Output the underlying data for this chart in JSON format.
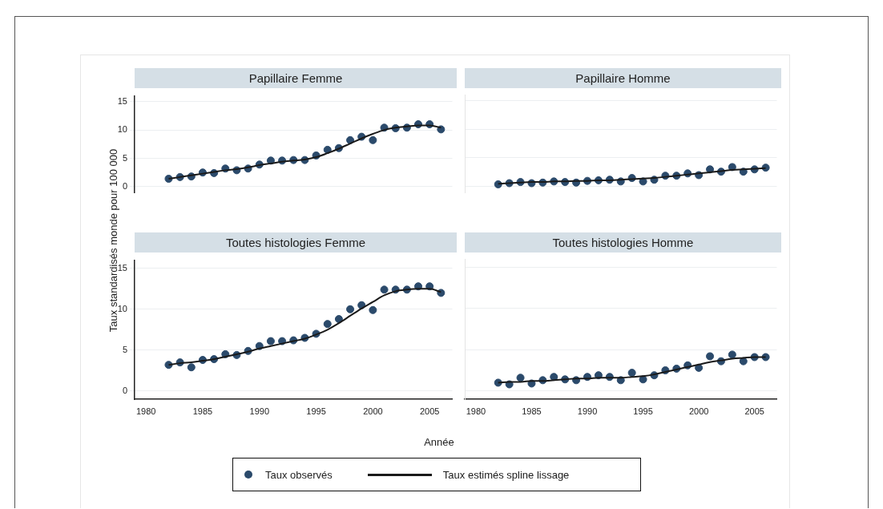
{
  "chart_data": [
    {
      "type": "scatter",
      "title": "Papillaire Femme",
      "ylabel": "Taux standardisés monde pour 100 000",
      "xlim": [
        1979,
        2007
      ],
      "xticks": [
        1980,
        1985,
        1990,
        1995,
        2000,
        2005
      ],
      "ylim": [
        -1,
        16
      ],
      "yticks": [
        0,
        5,
        10,
        15
      ],
      "grid": "y",
      "tick_labels": "y",
      "legend": "bottom",
      "x": [
        1982,
        1983,
        1984,
        1985,
        1986,
        1987,
        1988,
        1989,
        1990,
        1991,
        1992,
        1993,
        1994,
        1995,
        1996,
        1997,
        1998,
        1999,
        2000,
        2001,
        2002,
        2003,
        2004,
        2005,
        2006
      ],
      "series": [
        {
          "name": "Taux observés",
          "marker": "circle",
          "color": "#2b4a6b",
          "values": [
            1.4,
            1.7,
            1.8,
            2.5,
            2.4,
            3.2,
            2.9,
            3.2,
            3.9,
            4.6,
            4.6,
            4.7,
            4.7,
            5.5,
            6.5,
            6.8,
            8.2,
            8.8,
            8.2,
            10.4,
            10.3,
            10.4,
            11.0,
            11.0,
            10.1
          ]
        },
        {
          "name": "Taux estimés spline lissage",
          "type": "line",
          "marker": "none",
          "color": "#1a1a1a",
          "values": [
            1.4,
            1.7,
            2.0,
            2.3,
            2.6,
            2.9,
            3.1,
            3.4,
            3.8,
            4.1,
            4.4,
            4.6,
            4.8,
            5.2,
            5.9,
            6.7,
            7.6,
            8.5,
            9.3,
            10.0,
            10.4,
            10.6,
            10.8,
            10.8,
            10.4
          ]
        }
      ]
    },
    {
      "type": "scatter",
      "title": "Papillaire Homme",
      "xlim": [
        1979,
        2007
      ],
      "xticks": [
        1980,
        1985,
        1990,
        1995,
        2000,
        2005
      ],
      "ylim": [
        -1,
        16
      ],
      "yticks": [
        0,
        5,
        10,
        15
      ],
      "grid": "y",
      "tick_labels": false,
      "x": [
        1982,
        1983,
        1984,
        1985,
        1986,
        1987,
        1988,
        1989,
        1990,
        1991,
        1992,
        1993,
        1994,
        1995,
        1996,
        1997,
        1998,
        1999,
        2000,
        2001,
        2002,
        2003,
        2004,
        2005,
        2006
      ],
      "series": [
        {
          "marker": "circle",
          "color": "#2b4a6b",
          "values": [
            0.4,
            0.6,
            0.8,
            0.6,
            0.7,
            0.9,
            0.8,
            0.7,
            1.0,
            1.1,
            1.2,
            0.9,
            1.5,
            0.9,
            1.2,
            1.9,
            1.9,
            2.3,
            2.0,
            3.0,
            2.6,
            3.4,
            2.6,
            3.0,
            3.3
          ]
        },
        {
          "type": "line",
          "marker": "none",
          "color": "#1a1a1a",
          "values": [
            0.5,
            0.6,
            0.7,
            0.8,
            0.8,
            0.9,
            0.9,
            1.0,
            1.0,
            1.1,
            1.1,
            1.2,
            1.3,
            1.4,
            1.5,
            1.7,
            1.9,
            2.1,
            2.3,
            2.5,
            2.7,
            2.9,
            3.0,
            3.1,
            3.2
          ]
        }
      ]
    },
    {
      "type": "scatter",
      "title": "Toutes histologies Femme",
      "xlabel": "Année",
      "xlim": [
        1979,
        2007
      ],
      "xticks": [
        1980,
        1985,
        1990,
        1995,
        2000,
        2005
      ],
      "ylim": [
        -1,
        16
      ],
      "yticks": [
        0,
        5,
        10,
        15
      ],
      "grid": "y",
      "x": [
        1982,
        1983,
        1984,
        1985,
        1986,
        1987,
        1988,
        1989,
        1990,
        1991,
        1992,
        1993,
        1994,
        1995,
        1996,
        1997,
        1998,
        1999,
        2000,
        2001,
        2002,
        2003,
        2004,
        2005,
        2006
      ],
      "series": [
        {
          "marker": "circle",
          "color": "#2b4a6b",
          "values": [
            3.2,
            3.5,
            2.9,
            3.8,
            3.9,
            4.5,
            4.4,
            4.9,
            5.5,
            6.1,
            6.1,
            6.2,
            6.5,
            7.0,
            8.2,
            8.8,
            10.0,
            10.5,
            9.9,
            12.4,
            12.4,
            12.4,
            12.8,
            12.8,
            12.0
          ]
        },
        {
          "type": "line",
          "marker": "none",
          "color": "#1a1a1a",
          "values": [
            3.2,
            3.4,
            3.5,
            3.7,
            3.9,
            4.2,
            4.5,
            4.8,
            5.2,
            5.5,
            5.8,
            6.1,
            6.4,
            6.9,
            7.5,
            8.3,
            9.2,
            10.1,
            10.9,
            11.7,
            12.2,
            12.4,
            12.5,
            12.5,
            12.1
          ]
        }
      ]
    },
    {
      "type": "scatter",
      "title": "Toutes histologies Homme",
      "xlim": [
        1979,
        2007
      ],
      "xticks": [
        1980,
        1985,
        1990,
        1995,
        2000,
        2005
      ],
      "ylim": [
        -1,
        16
      ],
      "yticks": [
        0,
        5,
        10,
        15
      ],
      "grid": "y",
      "tick_labels": "x",
      "x": [
        1982,
        1983,
        1984,
        1985,
        1986,
        1987,
        1988,
        1989,
        1990,
        1991,
        1992,
        1993,
        1994,
        1995,
        1996,
        1997,
        1998,
        1999,
        2000,
        2001,
        2002,
        2003,
        2004,
        2005,
        2006
      ],
      "series": [
        {
          "marker": "circle",
          "color": "#2b4a6b",
          "values": [
            1.0,
            0.8,
            1.6,
            0.9,
            1.3,
            1.7,
            1.4,
            1.3,
            1.7,
            1.9,
            1.7,
            1.3,
            2.2,
            1.4,
            1.9,
            2.5,
            2.7,
            3.1,
            2.8,
            4.2,
            3.6,
            4.4,
            3.6,
            4.1,
            4.1
          ]
        },
        {
          "type": "line",
          "marker": "none",
          "color": "#1a1a1a",
          "values": [
            1.0,
            1.1,
            1.1,
            1.2,
            1.2,
            1.3,
            1.4,
            1.5,
            1.5,
            1.6,
            1.6,
            1.6,
            1.7,
            1.8,
            2.0,
            2.3,
            2.6,
            2.9,
            3.2,
            3.5,
            3.7,
            3.9,
            4.0,
            4.1,
            4.1
          ]
        }
      ]
    }
  ]
}
